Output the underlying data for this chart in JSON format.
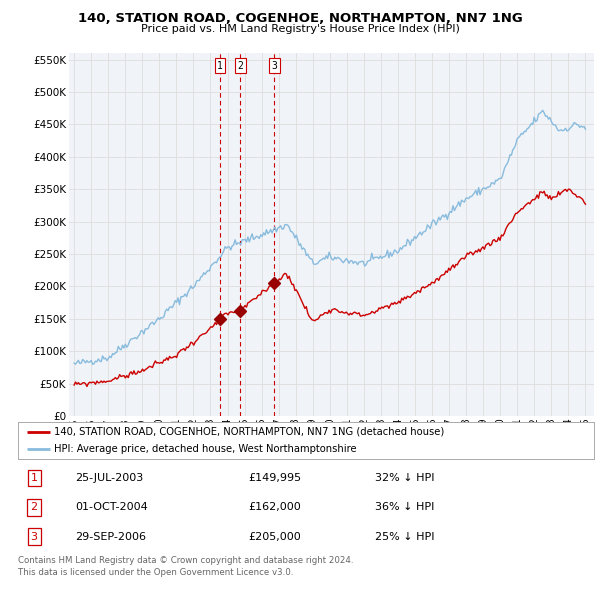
{
  "title": "140, STATION ROAD, COGENHOE, NORTHAMPTON, NN7 1NG",
  "subtitle": "Price paid vs. HM Land Registry's House Price Index (HPI)",
  "legend_property": "140, STATION ROAD, COGENHOE, NORTHAMPTON, NN7 1NG (detached house)",
  "legend_hpi": "HPI: Average price, detached house, West Northamptonshire",
  "footer1": "Contains HM Land Registry data © Crown copyright and database right 2024.",
  "footer2": "This data is licensed under the Open Government Licence v3.0.",
  "sales": [
    {
      "label": "1",
      "date": "25-JUL-2003",
      "date_num": 2003.56,
      "price": 149995,
      "hpi_pct": "32% ↓ HPI"
    },
    {
      "label": "2",
      "date": "01-OCT-2004",
      "date_num": 2004.75,
      "price": 162000,
      "hpi_pct": "36% ↓ HPI"
    },
    {
      "label": "3",
      "date": "29-SEP-2006",
      "date_num": 2006.74,
      "price": 205000,
      "hpi_pct": "25% ↓ HPI"
    }
  ],
  "property_color": "#cc0000",
  "hpi_color": "#88bbdd",
  "sale_marker_color": "#990000",
  "vline_color": "#cc0000",
  "grid_color": "#dddddd",
  "bg_color": "#ffffff",
  "ylim": [
    0,
    560000
  ],
  "yticks": [
    0,
    50000,
    100000,
    150000,
    200000,
    250000,
    300000,
    350000,
    400000,
    450000,
    500000,
    550000
  ],
  "ytick_labels": [
    "£0",
    "£50K",
    "£100K",
    "£150K",
    "£200K",
    "£250K",
    "£300K",
    "£350K",
    "£400K",
    "£450K",
    "£500K",
    "£550K"
  ],
  "xmin": 1995.0,
  "xmax": 2025.5
}
